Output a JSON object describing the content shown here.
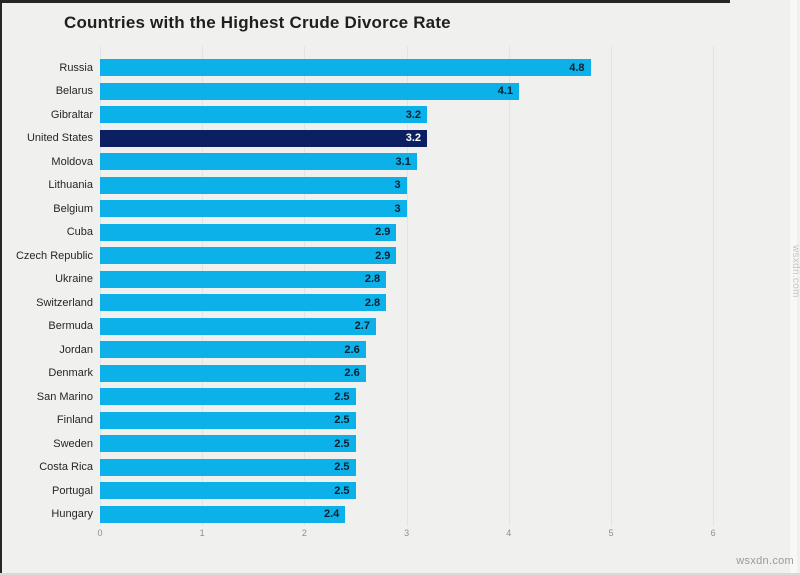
{
  "title": "Countries with the Highest Crude Divorce Rate",
  "watermark": {
    "bottom_right": "wsxdn.com",
    "right_edge": "wsxdn.com"
  },
  "colors": {
    "background": "#f0f0ee",
    "frame_border": "#262626",
    "bar": "#0bb1e8",
    "highlight_bar": "#0c2061",
    "value_on_bar": "#0b2030",
    "value_on_highlight": "#ffffff",
    "category_label": "#262626",
    "tick_label": "#8f8f8f",
    "gridline": "#e3e3e1",
    "title": "#1f1f1f",
    "watermark": "#9a9a9a"
  },
  "chart_data": {
    "type": "bar",
    "orientation": "horizontal",
    "title": "Countries with the Highest Crude Divorce Rate",
    "categories": [
      "Russia",
      "Belarus",
      "Gibraltar",
      "United States",
      "Moldova",
      "Lithuania",
      "Belgium",
      "Cuba",
      "Czech Republic",
      "Ukraine",
      "Switzerland",
      "Bermuda",
      "Jordan",
      "Denmark",
      "San Marino",
      "Finland",
      "Sweden",
      "Costa Rica",
      "Portugal",
      "Hungary"
    ],
    "values": [
      4.8,
      4.1,
      3.2,
      3.2,
      3.1,
      3,
      3,
      2.9,
      2.9,
      2.8,
      2.8,
      2.7,
      2.6,
      2.6,
      2.5,
      2.5,
      2.5,
      2.5,
      2.5,
      2.4
    ],
    "value_labels": [
      "4.8",
      "4.1",
      "3.2",
      "3.2",
      "3.1",
      "3",
      "3",
      "2.9",
      "2.9",
      "2.8",
      "2.8",
      "2.7",
      "2.6",
      "2.6",
      "2.5",
      "2.5",
      "2.5",
      "2.5",
      "2.5",
      "2.4"
    ],
    "highlighted_category": "United States",
    "highlighted_index": 3,
    "x_ticks": [
      "0",
      "1",
      "2",
      "3",
      "4",
      "5",
      "6"
    ],
    "xlim": [
      0,
      6
    ],
    "grid": true,
    "legend": false,
    "value_labels_position": "inside-end"
  }
}
